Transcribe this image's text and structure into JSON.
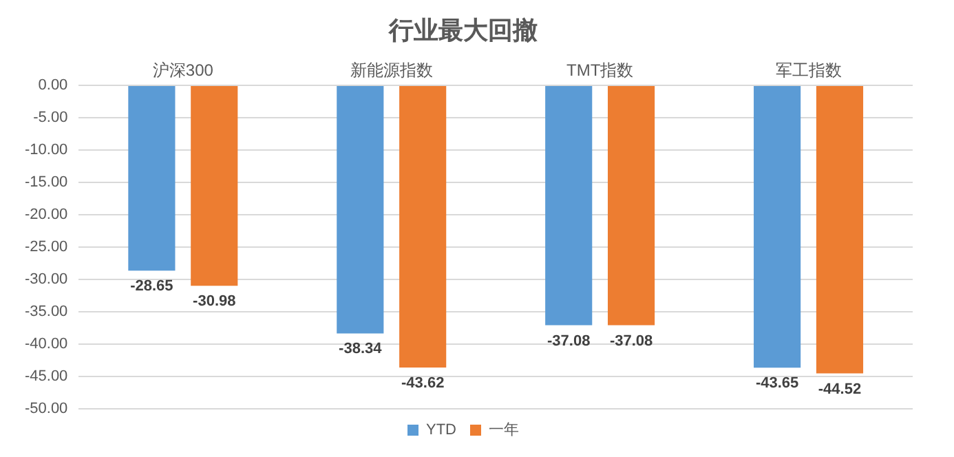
{
  "chart_data": {
    "type": "bar",
    "title": "行业最大回撤",
    "categories": [
      "沪深300",
      "新能源指数",
      "TMT指数",
      "军工指数"
    ],
    "series": [
      {
        "name": "YTD",
        "color": "#5b9bd5",
        "values": [
          -28.65,
          -38.34,
          -37.08,
          -43.65
        ]
      },
      {
        "name": "一年",
        "color": "#ed7d31",
        "values": [
          -30.98,
          -43.62,
          -37.08,
          -44.52
        ]
      }
    ],
    "ylim": [
      -50,
      0
    ],
    "yticks": [
      {
        "value": 0,
        "label": "0.00"
      },
      {
        "value": -5,
        "label": "-5.00"
      },
      {
        "value": -10,
        "label": "-10.00"
      },
      {
        "value": -15,
        "label": "-15.00"
      },
      {
        "value": -20,
        "label": "-20.00"
      },
      {
        "value": -25,
        "label": "-25.00"
      },
      {
        "value": -30,
        "label": "-30.00"
      },
      {
        "value": -35,
        "label": "-35.00"
      },
      {
        "value": -40,
        "label": "-40.00"
      },
      {
        "value": -45,
        "label": "-45.00"
      },
      {
        "value": -50,
        "label": "-50.00"
      }
    ],
    "grid": "y",
    "legend": "bottom",
    "data_labels": true
  }
}
